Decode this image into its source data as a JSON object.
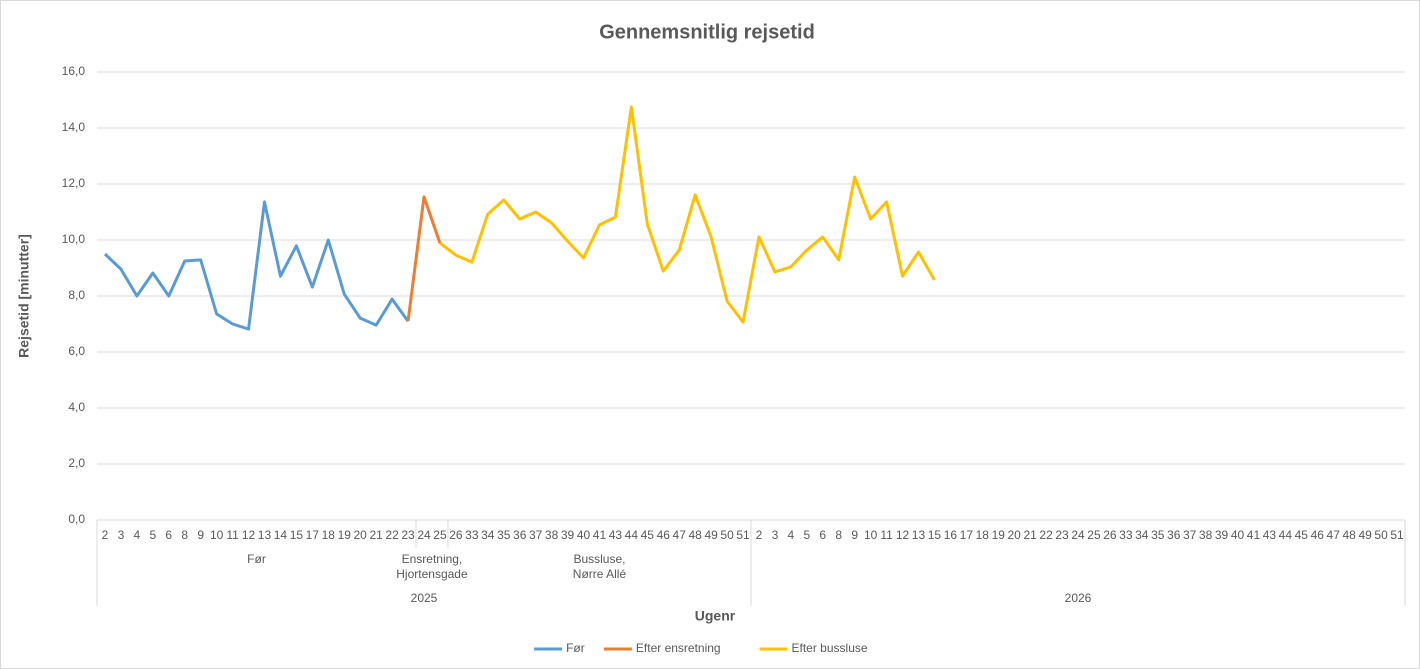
{
  "chart_data": {
    "type": "line",
    "title": "Gennemsnitlig rejsetid",
    "y_label": "Rejsetid [minutter]",
    "x_label": "Ugenr",
    "categories": [
      "2",
      "3",
      "4",
      "5",
      "6",
      "8",
      "9",
      "10",
      "11",
      "12",
      "13",
      "14",
      "15",
      "17",
      "18",
      "19",
      "20",
      "21",
      "22",
      "23",
      "24",
      "25",
      "26",
      "33",
      "34",
      "35",
      "36",
      "37",
      "38",
      "39",
      "40",
      "41",
      "43",
      "44",
      "45",
      "46",
      "47",
      "48",
      "49",
      "50",
      "51",
      "2",
      "3",
      "4",
      "5",
      "6",
      "8",
      "9",
      "10",
      "11",
      "12",
      "13",
      "15",
      "16",
      "17",
      "18",
      "19",
      "20",
      "21",
      "22",
      "23",
      "24",
      "25",
      "26",
      "33",
      "34",
      "35",
      "36",
      "37",
      "38",
      "39",
      "40",
      "41",
      "43",
      "44",
      "45",
      "46",
      "47",
      "48",
      "49",
      "50",
      "51"
    ],
    "groups": [
      {
        "lines": [
          "Før"
        ],
        "span": 20
      },
      {
        "lines": [
          "Ensretning,",
          "Hjortensgade"
        ],
        "span": 2
      },
      {
        "lines": [
          "Bussluse,",
          "Nørre Allé"
        ],
        "span": 19
      },
      {
        "lines": [],
        "span": 41
      }
    ],
    "years": [
      {
        "label": "2025",
        "span": 41
      },
      {
        "label": "2026",
        "span": 41
      }
    ],
    "series": [
      {
        "name": "Før",
        "color": "#5b9bd5",
        "values": [
          9.5,
          8.96,
          8.0,
          8.82,
          8.0,
          9.25,
          9.29,
          7.36,
          7.0,
          6.82,
          11.36,
          8.71,
          9.79,
          8.32,
          10.0,
          8.07,
          7.21,
          6.96,
          7.89,
          7.1,
          null,
          null,
          null,
          null,
          null,
          null,
          null,
          null,
          null,
          null,
          null,
          null,
          null,
          null,
          null,
          null,
          null,
          null,
          null,
          null,
          null,
          null,
          null,
          null,
          null,
          null,
          null,
          null,
          null,
          null,
          null,
          null,
          null,
          null,
          null,
          null,
          null,
          null,
          null,
          null,
          null,
          null,
          null,
          null,
          null,
          null,
          null,
          null,
          null,
          null,
          null,
          null,
          null,
          null,
          null,
          null,
          null,
          null,
          null,
          null,
          null,
          null
        ]
      },
      {
        "name": "Efter ensretning",
        "color": "#ed7d31",
        "values": [
          null,
          null,
          null,
          null,
          null,
          null,
          null,
          null,
          null,
          null,
          null,
          null,
          null,
          null,
          null,
          null,
          null,
          null,
          null,
          7.1,
          11.54,
          9.89,
          null,
          null,
          null,
          null,
          null,
          null,
          null,
          null,
          null,
          null,
          null,
          null,
          null,
          null,
          null,
          null,
          null,
          null,
          null,
          null,
          null,
          null,
          null,
          null,
          null,
          null,
          null,
          null,
          null,
          null,
          null,
          null,
          null,
          null,
          null,
          null,
          null,
          null,
          null,
          null,
          null,
          null,
          null,
          null,
          null,
          null,
          null,
          null,
          null,
          null,
          null,
          null,
          null,
          null,
          null,
          null,
          null,
          null,
          null,
          null
        ]
      },
      {
        "name": "Efter bussluse",
        "color": "#ffc000",
        "values": [
          null,
          null,
          null,
          null,
          null,
          null,
          null,
          null,
          null,
          null,
          null,
          null,
          null,
          null,
          null,
          null,
          null,
          null,
          null,
          null,
          null,
          9.89,
          9.46,
          9.21,
          10.93,
          11.43,
          10.75,
          11.0,
          10.61,
          9.96,
          9.36,
          10.54,
          10.82,
          14.75,
          10.57,
          8.89,
          9.64,
          11.61,
          10.11,
          7.82,
          7.07,
          10.11,
          8.86,
          9.04,
          9.64,
          10.11,
          9.29,
          12.25,
          10.75,
          11.36,
          8.71,
          9.57,
          8.57,
          null,
          null,
          null,
          null,
          null,
          null,
          null,
          null,
          null,
          null,
          null,
          null,
          null,
          null,
          null,
          null,
          null,
          null,
          null,
          null,
          null,
          null,
          null,
          null,
          null,
          null,
          null,
          null,
          null
        ]
      }
    ],
    "ylim": [
      0,
      16
    ],
    "yticks": [
      {
        "value": 0,
        "label": "0,0"
      },
      {
        "value": 2,
        "label": "2,0"
      },
      {
        "value": 4,
        "label": "4,0"
      },
      {
        "value": 6,
        "label": "6,0"
      },
      {
        "value": 8,
        "label": "8,0"
      },
      {
        "value": 10,
        "label": "10,0"
      },
      {
        "value": 12,
        "label": "12,0"
      },
      {
        "value": 14,
        "label": "14,0"
      },
      {
        "value": 16,
        "label": "16,0"
      }
    ],
    "grid": true,
    "legend": "bottom"
  }
}
